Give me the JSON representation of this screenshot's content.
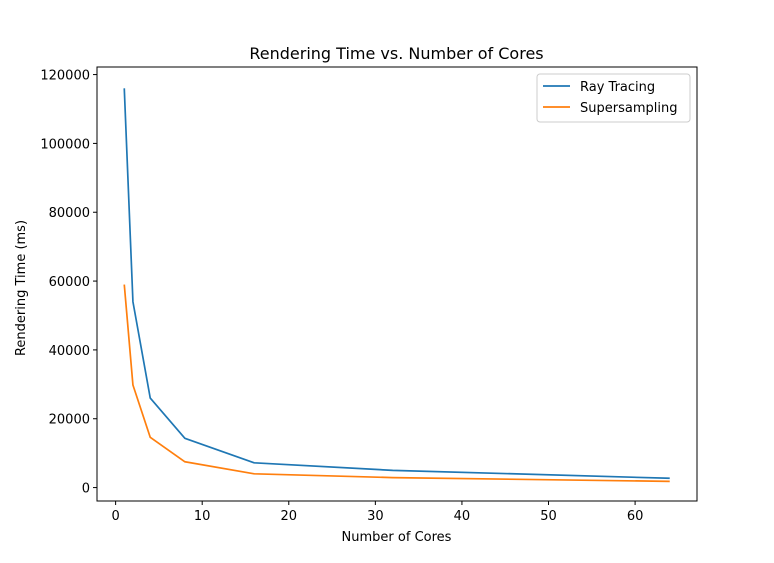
{
  "chart_data": {
    "type": "line",
    "title": "Rendering Time vs. Number of Cores",
    "xlabel": "Number of Cores",
    "ylabel": "Rendering Time (ms)",
    "xlim": [
      -2.15,
      67.15
    ],
    "ylim": [
      -3900,
      122200
    ],
    "xticks": [
      0,
      10,
      20,
      30,
      40,
      50,
      60
    ],
    "yticks": [
      0,
      20000,
      40000,
      60000,
      80000,
      100000,
      120000
    ],
    "grid": false,
    "legend_position": "upper right",
    "x": [
      1,
      2,
      4,
      8,
      16,
      32,
      64
    ],
    "series": [
      {
        "name": "Ray Tracing",
        "color": "#1f77b4",
        "values": [
          116000,
          54000,
          26000,
          14300,
          7200,
          5000,
          2700
        ]
      },
      {
        "name": "Supersampling",
        "color": "#ff7f0e",
        "values": [
          59000,
          29800,
          14600,
          7500,
          4000,
          2900,
          1800
        ]
      }
    ]
  }
}
